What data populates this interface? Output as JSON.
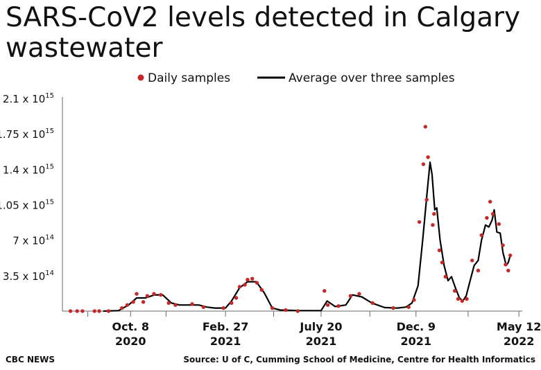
{
  "title_line1": "SARS-CoV2 levels detected in Calgary",
  "title_line2": "wastewater",
  "footer": {
    "brand": "CBC NEWS",
    "source": "Source: U of C, Cumming School of Medicine, Centre for Health Informatics"
  },
  "colors": {
    "dots": "#c62828",
    "line": "#000000",
    "axis": "#666666"
  },
  "chart_data": {
    "type": "line",
    "legend": [
      {
        "name": "Daily samples",
        "marker": "dot"
      },
      {
        "name": "Average over three samples",
        "marker": "line"
      }
    ],
    "legend_placement": "top-center",
    "grid": false,
    "ylim": [
      0,
      2100000000000000
    ],
    "y_ticks": [
      {
        "value": 2100000000000000,
        "base": "2.1 x 10",
        "exp": "15"
      },
      {
        "value": 1750000000000000,
        "base": "1.75 x 10",
        "exp": "15"
      },
      {
        "value": 1400000000000000,
        "base": "1.4 x 10",
        "exp": "15"
      },
      {
        "value": 1050000000000000,
        "base": "1.05 x 10",
        "exp": "15"
      },
      {
        "value": 700000000000000,
        "base": "7 x 10",
        "exp": "14"
      },
      {
        "value": 350000000000000,
        "base": "3.5 x 10",
        "exp": "14"
      }
    ],
    "xlim": [
      "2020-06-28",
      "2022-05-17"
    ],
    "x_ticks": [
      {
        "date": "2020-10-08",
        "line1": "Oct. 8",
        "line2": "2020"
      },
      {
        "date": "2021-02-27",
        "line1": "Feb. 27",
        "line2": "2021"
      },
      {
        "date": "2021-07-20",
        "line1": "July 20",
        "line2": "2021"
      },
      {
        "date": "2021-12-09",
        "line1": "Dec. 9",
        "line2": "2021"
      },
      {
        "date": "2022-05-12",
        "line1": "May 12",
        "line2": "2022"
      }
    ],
    "x_minor_ticks": [
      "2020-08-05",
      "2020-11-30",
      "2021-05-10",
      "2021-10-01",
      "2022-02-25"
    ],
    "series": [
      {
        "name": "Average over three samples",
        "points": [
          [
            "2020-08-28",
            0
          ],
          [
            "2020-09-20",
            5000000000000
          ],
          [
            "2020-10-05",
            60000000000000
          ],
          [
            "2020-10-17",
            130000000000000
          ],
          [
            "2020-10-30",
            130000000000000
          ],
          [
            "2020-11-13",
            160000000000000
          ],
          [
            "2020-11-25",
            160000000000000
          ],
          [
            "2020-12-08",
            80000000000000
          ],
          [
            "2020-12-20",
            60000000000000
          ],
          [
            "2021-01-18",
            60000000000000
          ],
          [
            "2021-01-30",
            40000000000000
          ],
          [
            "2021-02-11",
            30000000000000
          ],
          [
            "2021-02-27",
            30000000000000
          ],
          [
            "2021-03-08",
            100000000000000
          ],
          [
            "2021-03-20",
            230000000000000
          ],
          [
            "2021-04-01",
            290000000000000
          ],
          [
            "2021-04-14",
            290000000000000
          ],
          [
            "2021-04-26",
            180000000000000
          ],
          [
            "2021-05-08",
            30000000000000
          ],
          [
            "2021-05-20",
            10000000000000
          ],
          [
            "2021-06-20",
            5000000000000
          ],
          [
            "2021-07-20",
            5000000000000
          ],
          [
            "2021-07-29",
            100000000000000
          ],
          [
            "2021-08-10",
            45000000000000
          ],
          [
            "2021-08-26",
            60000000000000
          ],
          [
            "2021-09-05",
            160000000000000
          ],
          [
            "2021-09-19",
            140000000000000
          ],
          [
            "2021-10-04",
            80000000000000
          ],
          [
            "2021-10-23",
            35000000000000
          ],
          [
            "2021-11-11",
            30000000000000
          ],
          [
            "2021-11-24",
            40000000000000
          ],
          [
            "2021-12-03",
            80000000000000
          ],
          [
            "2021-12-12",
            250000000000000
          ],
          [
            "2021-12-19",
            700000000000000
          ],
          [
            "2021-12-26",
            1200000000000000
          ],
          [
            "2021-12-30",
            1470000000000000
          ],
          [
            "2022-01-02",
            1350000000000000
          ],
          [
            "2022-01-06",
            1000000000000000
          ],
          [
            "2022-01-09",
            1020000000000000
          ],
          [
            "2022-01-14",
            700000000000000
          ],
          [
            "2022-01-20",
            450000000000000
          ],
          [
            "2022-01-26",
            300000000000000
          ],
          [
            "2022-01-31",
            340000000000000
          ],
          [
            "2022-02-06",
            230000000000000
          ],
          [
            "2022-02-12",
            130000000000000
          ],
          [
            "2022-02-17",
            100000000000000
          ],
          [
            "2022-02-22",
            150000000000000
          ],
          [
            "2022-02-28",
            300000000000000
          ],
          [
            "2022-03-06",
            450000000000000
          ],
          [
            "2022-03-12",
            500000000000000
          ],
          [
            "2022-03-17",
            700000000000000
          ],
          [
            "2022-03-23",
            850000000000000
          ],
          [
            "2022-03-28",
            830000000000000
          ],
          [
            "2022-04-02",
            900000000000000
          ],
          [
            "2022-04-05",
            1000000000000000
          ],
          [
            "2022-04-09",
            780000000000000
          ],
          [
            "2022-04-14",
            770000000000000
          ],
          [
            "2022-04-18",
            580000000000000
          ],
          [
            "2022-04-23",
            450000000000000
          ],
          [
            "2022-04-26",
            480000000000000
          ],
          [
            "2022-04-29",
            550000000000000
          ]
        ]
      },
      {
        "name": "Daily samples",
        "points": [
          [
            "2020-07-10",
            0
          ],
          [
            "2020-07-20",
            0
          ],
          [
            "2020-07-28",
            0
          ],
          [
            "2020-08-15",
            0
          ],
          [
            "2020-08-22",
            0
          ],
          [
            "2020-09-05",
            0
          ],
          [
            "2020-09-25",
            30000000000000
          ],
          [
            "2020-10-03",
            60000000000000
          ],
          [
            "2020-10-12",
            90000000000000
          ],
          [
            "2020-10-17",
            170000000000000
          ],
          [
            "2020-10-27",
            90000000000000
          ],
          [
            "2020-11-02",
            150000000000000
          ],
          [
            "2020-11-12",
            170000000000000
          ],
          [
            "2020-11-22",
            160000000000000
          ],
          [
            "2020-12-04",
            80000000000000
          ],
          [
            "2020-12-14",
            60000000000000
          ],
          [
            "2021-01-08",
            70000000000000
          ],
          [
            "2021-01-25",
            40000000000000
          ],
          [
            "2021-02-24",
            30000000000000
          ],
          [
            "2021-03-08",
            80000000000000
          ],
          [
            "2021-03-15",
            130000000000000
          ],
          [
            "2021-03-20",
            240000000000000
          ],
          [
            "2021-03-28",
            260000000000000
          ],
          [
            "2021-04-01",
            310000000000000
          ],
          [
            "2021-04-08",
            320000000000000
          ],
          [
            "2021-04-15",
            280000000000000
          ],
          [
            "2021-04-22",
            210000000000000
          ],
          [
            "2021-05-08",
            30000000000000
          ],
          [
            "2021-05-28",
            10000000000000
          ],
          [
            "2021-06-15",
            0
          ],
          [
            "2021-07-25",
            200000000000000
          ],
          [
            "2021-07-30",
            60000000000000
          ],
          [
            "2021-08-15",
            50000000000000
          ],
          [
            "2021-09-02",
            150000000000000
          ],
          [
            "2021-09-15",
            170000000000000
          ],
          [
            "2021-10-05",
            80000000000000
          ],
          [
            "2021-11-05",
            30000000000000
          ],
          [
            "2021-11-28",
            40000000000000
          ],
          [
            "2021-12-06",
            110000000000000
          ],
          [
            "2021-12-14",
            880000000000000
          ],
          [
            "2021-12-20",
            1450000000000000
          ],
          [
            "2021-12-23",
            1820000000000000
          ],
          [
            "2021-12-25",
            1100000000000000
          ],
          [
            "2021-12-27",
            1520000000000000
          ],
          [
            "2022-01-03",
            850000000000000
          ],
          [
            "2022-01-05",
            960000000000000
          ],
          [
            "2022-01-13",
            600000000000000
          ],
          [
            "2022-01-17",
            480000000000000
          ],
          [
            "2022-01-22",
            340000000000000
          ],
          [
            "2022-02-05",
            200000000000000
          ],
          [
            "2022-02-10",
            120000000000000
          ],
          [
            "2022-02-16",
            100000000000000
          ],
          [
            "2022-02-23",
            120000000000000
          ],
          [
            "2022-03-03",
            500000000000000
          ],
          [
            "2022-03-12",
            400000000000000
          ],
          [
            "2022-03-17",
            750000000000000
          ],
          [
            "2022-03-25",
            920000000000000
          ],
          [
            "2022-03-30",
            1080000000000000
          ],
          [
            "2022-04-03",
            960000000000000
          ],
          [
            "2022-04-12",
            860000000000000
          ],
          [
            "2022-04-18",
            650000000000000
          ],
          [
            "2022-04-22",
            460000000000000
          ],
          [
            "2022-04-26",
            400000000000000
          ],
          [
            "2022-04-29",
            550000000000000
          ]
        ]
      }
    ]
  }
}
